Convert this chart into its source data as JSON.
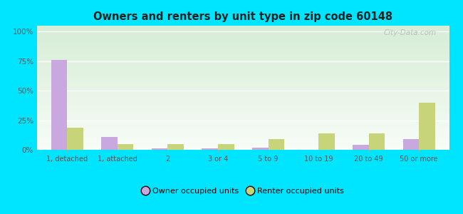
{
  "title": "Owners and renters by unit type in zip code 60148",
  "categories": [
    "1, detached",
    "1, attached",
    "2",
    "3 or 4",
    "5 to 9",
    "10 to 19",
    "20 to 49",
    "50 or more"
  ],
  "owner_values": [
    76,
    11,
    1,
    1,
    2,
    0,
    4,
    9
  ],
  "renter_values": [
    19,
    5,
    5,
    5,
    9,
    14,
    14,
    40
  ],
  "owner_color": "#c9a8e0",
  "renter_color": "#c8d47a",
  "outer_bg": "#00e5ff",
  "yticks": [
    0,
    25,
    50,
    75,
    100
  ],
  "ylim": [
    0,
    105
  ],
  "legend_owner": "Owner occupied units",
  "legend_renter": "Renter occupied units",
  "watermark": "City-Data.com",
  "bar_width": 0.32
}
